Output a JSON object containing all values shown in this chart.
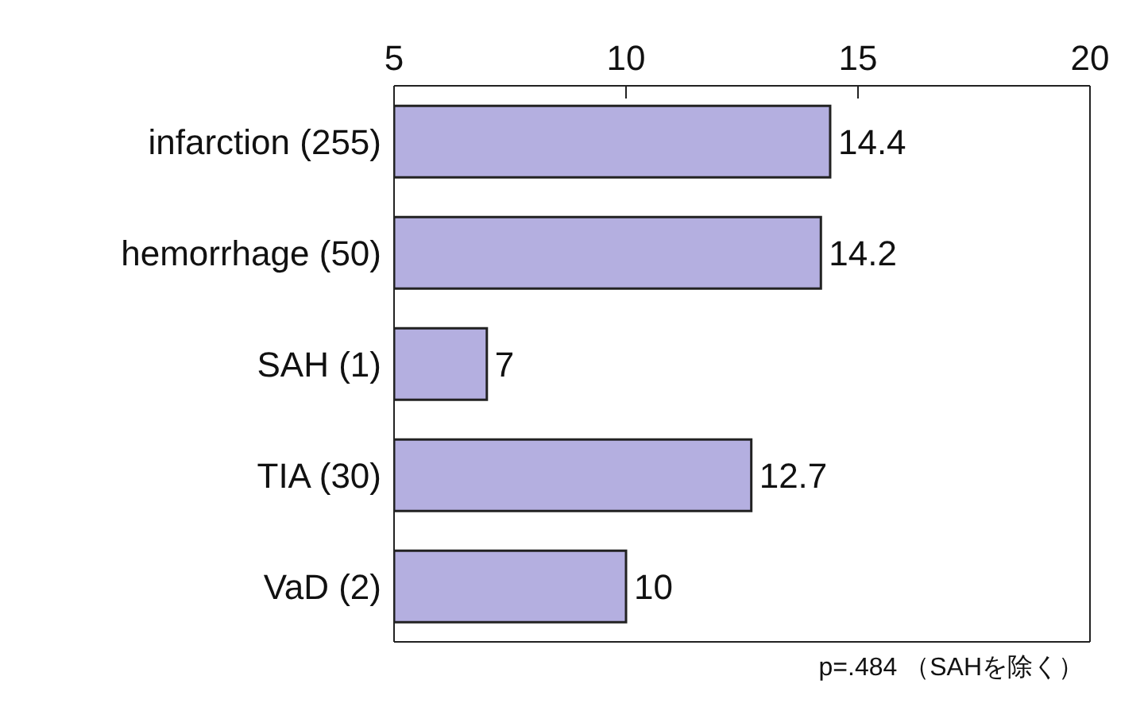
{
  "chart_data": {
    "type": "bar",
    "orientation": "horizontal",
    "categories": [
      "infarction (255)",
      "hemorrhage (50)",
      "SAH (1)",
      "TIA (30)",
      "VaD (2)"
    ],
    "values": [
      14.4,
      14.2,
      7,
      12.7,
      10
    ],
    "color": "#b4afe0",
    "xlim": [
      5,
      20
    ],
    "xticks": [
      5,
      10,
      15,
      20
    ],
    "data_labels": true,
    "annotations": [
      "p=.484 （SAHを除く）"
    ]
  }
}
